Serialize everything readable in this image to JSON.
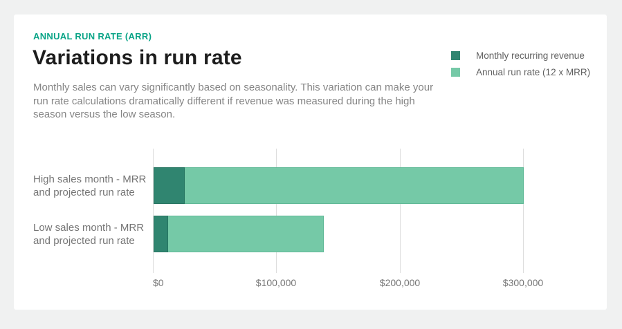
{
  "page": {
    "background_color": "#f0f1f1",
    "card_color": "#ffffff",
    "accent_color": "#0aa487"
  },
  "header": {
    "eyebrow": "ANNUAL RUN RATE (ARR)",
    "title": "Variations in run rate",
    "description": "Monthly sales can vary significantly based on seasonality. This variation can make your run rate calculations dramatically different if revenue was measured during the high season versus the low season."
  },
  "legend": {
    "position": "top-right",
    "items": [
      {
        "label": "Monthly recurring revenue",
        "color": "#308570"
      },
      {
        "label": "Annual run rate (12 x MRR)",
        "color": "#75c9a7"
      }
    ]
  },
  "chart_data": {
    "type": "bar",
    "orientation": "horizontal",
    "title": "Variations in run rate",
    "categories": [
      "High sales month - MRR\nand projected run rate",
      "Low sales month - MRR\nand projected run rate"
    ],
    "series": [
      {
        "name": "Monthly recurring revenue",
        "color": "#308570",
        "values": [
          25000,
          11500
        ]
      },
      {
        "name": "Annual run rate (12 x MRR)",
        "color": "#75c9a7",
        "values": [
          300000,
          138000
        ]
      }
    ],
    "bar_style": "overlaid-from-zero",
    "x_ticks": [
      {
        "value": 0,
        "label": "$0"
      },
      {
        "value": 100000,
        "label": "$100,000"
      },
      {
        "value": 200000,
        "label": "$200,000"
      },
      {
        "value": 300000,
        "label": "$300,000"
      }
    ],
    "xlim": [
      0,
      352000
    ],
    "grid": "vertical",
    "gridline_color": "#dedede",
    "legend_position": "top-right"
  }
}
